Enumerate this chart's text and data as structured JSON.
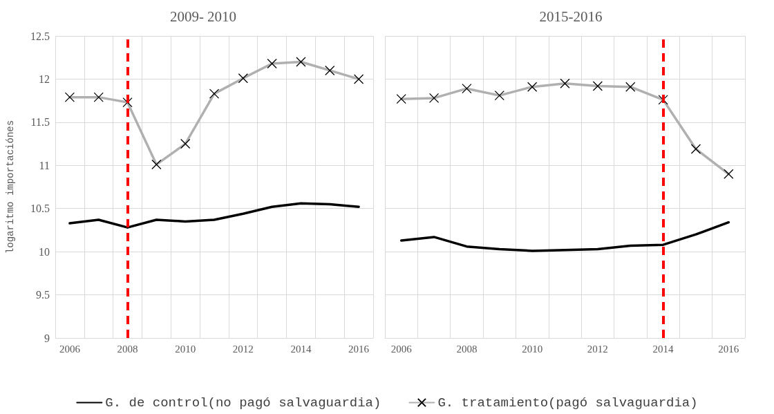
{
  "chart_data": [
    {
      "type": "line",
      "title": "2009- 2010",
      "ylabel": "logaritmo importaciónes",
      "categories": [
        "2006",
        null,
        "2008",
        null,
        "2010",
        null,
        "2012",
        null,
        "2014",
        null,
        "2016"
      ],
      "series": [
        {
          "name": "G. de control(no pagó salvaguardia)",
          "color": "#000000",
          "marker": "none",
          "values": [
            10.33,
            10.37,
            10.28,
            10.37,
            10.35,
            10.37,
            10.44,
            10.52,
            10.56,
            10.55,
            10.52
          ]
        },
        {
          "name": "G. tratamiento(pagó salvaguardia)",
          "color": "#b0b0b0",
          "marker": "cross",
          "values": [
            11.79,
            11.79,
            11.73,
            11.01,
            11.25,
            11.83,
            12.01,
            12.18,
            12.2,
            12.1,
            12.0
          ]
        }
      ],
      "ylim": [
        9,
        12.5
      ],
      "yticks": [
        9,
        9.5,
        10,
        10.5,
        11,
        11.5,
        12,
        12.5
      ],
      "ref_lines": [
        {
          "axis": "x",
          "value": "2008",
          "color": "#ff0000",
          "line_style": "dashed"
        }
      ],
      "grid": true,
      "legend": "bottom"
    },
    {
      "type": "line",
      "title": "2015-2016",
      "categories": [
        "2006",
        null,
        "2008",
        null,
        "2010",
        null,
        "2012",
        null,
        "2014",
        null,
        "2016"
      ],
      "series": [
        {
          "color": "#000000",
          "marker": "none",
          "values": [
            10.13,
            10.17,
            10.06,
            10.03,
            10.01,
            10.02,
            10.03,
            10.07,
            10.08,
            10.2,
            10.34
          ]
        },
        {
          "color": "#b0b0b0",
          "marker": "cross",
          "values": [
            11.77,
            11.78,
            11.89,
            11.81,
            11.91,
            11.95,
            11.92,
            11.91,
            11.76,
            11.19,
            10.9
          ]
        }
      ],
      "ylim": [
        9,
        12.5
      ],
      "yticks": [
        9,
        9.5,
        10,
        10.5,
        11,
        11.5,
        12,
        12.5
      ],
      "ref_lines": [
        {
          "axis": "x",
          "value": "2014",
          "color": "#ff0000",
          "line_style": "dashed"
        }
      ],
      "grid": true,
      "tick_labels": "x"
    }
  ]
}
